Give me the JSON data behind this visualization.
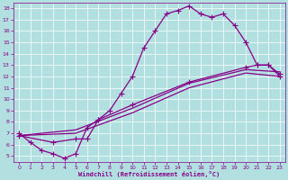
{
  "xlabel": "Windchill (Refroidissement éolien,°C)",
  "background_color": "#b2e0e0",
  "line_color": "#880088",
  "xlim": [
    -0.5,
    23.5
  ],
  "ylim": [
    4.5,
    18.5
  ],
  "xticks": [
    0,
    1,
    2,
    3,
    4,
    5,
    6,
    7,
    8,
    9,
    10,
    11,
    12,
    13,
    14,
    15,
    16,
    17,
    18,
    19,
    20,
    21,
    22,
    23
  ],
  "yticks": [
    5,
    6,
    7,
    8,
    9,
    10,
    11,
    12,
    13,
    14,
    15,
    16,
    17,
    18
  ],
  "line1_x": [
    0,
    1,
    2,
    3,
    4,
    5,
    6,
    7,
    8,
    9,
    10,
    11,
    12,
    13,
    14,
    15,
    16,
    17,
    18,
    19,
    20,
    21,
    22,
    23
  ],
  "line1_y": [
    7.0,
    6.2,
    5.5,
    5.2,
    4.8,
    5.2,
    7.5,
    8.2,
    9.0,
    10.5,
    12.0,
    14.5,
    16.0,
    17.5,
    17.8,
    18.2,
    17.5,
    17.2,
    17.5,
    16.5,
    15.0,
    13.0,
    13.0,
    12.0
  ],
  "line2_x": [
    0,
    3,
    5,
    6,
    7,
    10,
    15,
    20,
    21,
    22,
    23
  ],
  "line2_y": [
    6.8,
    6.2,
    6.5,
    6.5,
    8.2,
    9.5,
    11.5,
    12.8,
    13.0,
    13.0,
    12.2
  ],
  "line3_x": [
    0,
    5,
    10,
    15,
    20,
    23
  ],
  "line3_y": [
    6.8,
    7.0,
    8.8,
    11.0,
    12.3,
    12.0
  ],
  "line4_x": [
    0,
    5,
    10,
    15,
    20,
    23
  ],
  "line4_y": [
    6.8,
    7.3,
    9.2,
    11.4,
    12.6,
    12.4
  ],
  "marker": "+",
  "markersize": 4,
  "linewidth": 0.9
}
